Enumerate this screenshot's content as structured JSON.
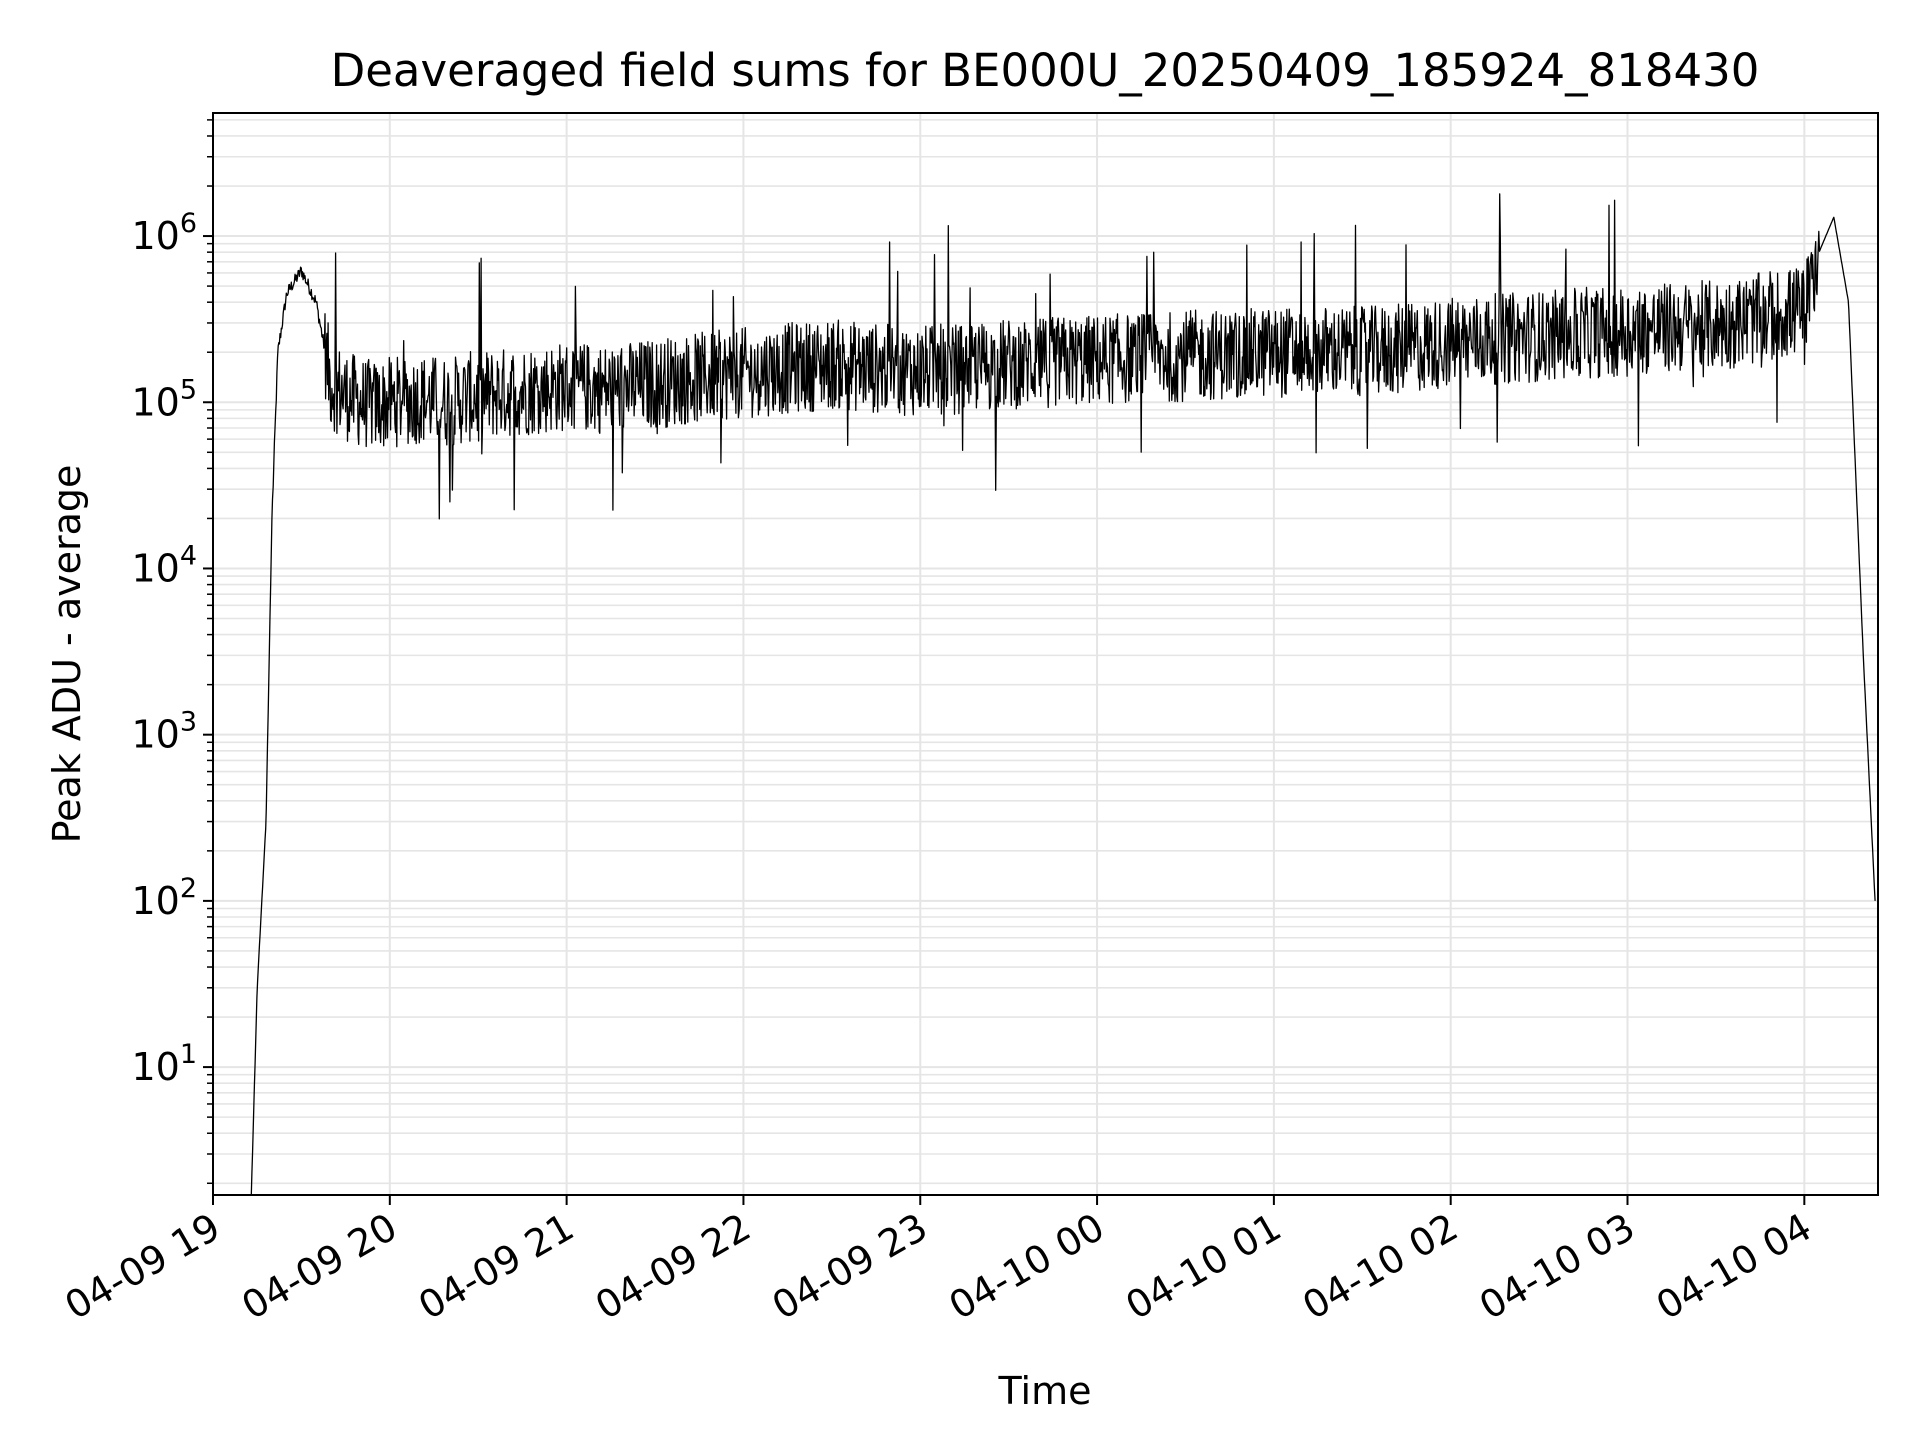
{
  "chart_data": {
    "type": "line",
    "title": "Deaveraged field sums for BE000U_20250409_185924_818430",
    "xlabel": "Time",
    "ylabel": "Peak ADU - average",
    "yscale": "log",
    "grid": true,
    "line_color": "#000000",
    "grid_color": "#e5e5e5",
    "x_ticks": [
      "04-09 19",
      "04-09 20",
      "04-09 21",
      "04-09 22",
      "04-09 23",
      "04-10 00",
      "04-10 01",
      "04-10 02",
      "04-10 03",
      "04-10 04"
    ],
    "y_ticks": [
      {
        "base": "10",
        "exp": "1"
      },
      {
        "base": "10",
        "exp": "2"
      },
      {
        "base": "10",
        "exp": "3"
      },
      {
        "base": "10",
        "exp": "4"
      },
      {
        "base": "10",
        "exp": "5"
      },
      {
        "base": "10",
        "exp": "6"
      }
    ],
    "xlim": [
      "2025-04-09 19:00",
      "2025-04-10 04:25"
    ],
    "ylim": [
      1.7,
      5500000
    ],
    "series": [
      {
        "x": [
          "2025-04-09 19:13",
          "2025-04-09 19:15",
          "2025-04-09 19:18",
          "2025-04-09 19:20",
          "2025-04-09 19:22",
          "2025-04-09 19:25",
          "2025-04-09 19:30",
          "2025-04-09 19:35",
          "2025-04-09 19:40",
          "2025-04-09 19:45",
          "2025-04-09 19:50",
          "2025-04-09 19:55",
          "2025-04-09 20:00",
          "2025-04-09 20:10",
          "2025-04-09 20:20",
          "2025-04-09 20:30",
          "2025-04-09 20:40",
          "2025-04-09 20:50",
          "2025-04-09 21:00",
          "2025-04-09 21:15",
          "2025-04-09 21:30",
          "2025-04-09 21:45",
          "2025-04-09 22:00",
          "2025-04-09 22:15",
          "2025-04-09 22:30",
          "2025-04-09 22:45",
          "2025-04-09 23:00",
          "2025-04-09 23:15",
          "2025-04-09 23:30",
          "2025-04-09 23:45",
          "2025-04-10 00:00",
          "2025-04-10 00:15",
          "2025-04-10 00:30",
          "2025-04-10 00:45",
          "2025-04-10 01:00",
          "2025-04-10 01:15",
          "2025-04-10 01:30",
          "2025-04-10 01:45",
          "2025-04-10 02:00",
          "2025-04-10 02:15",
          "2025-04-10 02:30",
          "2025-04-10 02:45",
          "2025-04-10 03:00",
          "2025-04-10 03:15",
          "2025-04-10 03:30",
          "2025-04-10 03:45",
          "2025-04-10 04:00",
          "2025-04-10 04:05",
          "2025-04-10 04:10",
          "2025-04-10 04:15",
          "2025-04-10 04:20",
          "2025-04-10 04:24"
        ],
        "y": [
          1.7,
          30,
          300,
          20000,
          200000,
          450000,
          620000,
          400000,
          130000,
          110000,
          100000,
          95000,
          100000,
          105000,
          100000,
          110000,
          115000,
          120000,
          125000,
          120000,
          130000,
          140000,
          150000,
          160000,
          170000,
          160000,
          155000,
          160000,
          170000,
          175000,
          180000,
          185000,
          190000,
          195000,
          200000,
          205000,
          200000,
          210000,
          230000,
          240000,
          250000,
          260000,
          270000,
          280000,
          290000,
          320000,
          360000,
          800000,
          1300000,
          400000,
          3000,
          100
        ]
      }
    ]
  }
}
